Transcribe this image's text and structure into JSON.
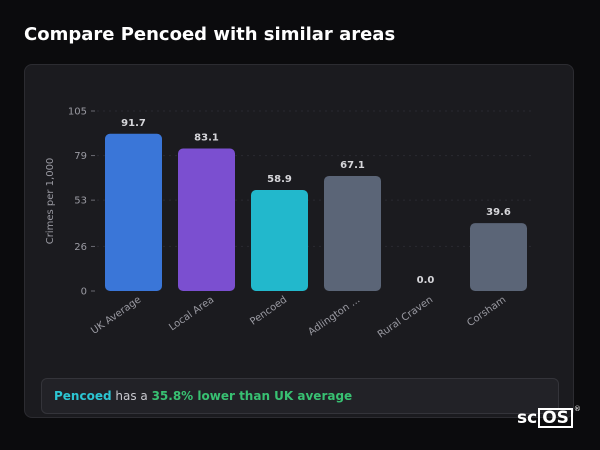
{
  "page": {
    "title": "Compare Pencoed with similar areas"
  },
  "chart_data": {
    "type": "bar",
    "title": "",
    "xlabel": "",
    "ylabel": "Crimes per 1,000",
    "ylim": [
      0,
      105
    ],
    "yticks": [
      0,
      26,
      53,
      79,
      105
    ],
    "categories": [
      "UK Average",
      "Local Area",
      "Pencoed",
      "Adlington ...",
      "Rural Craven",
      "Corsham"
    ],
    "values": [
      91.7,
      83.1,
      58.9,
      67.1,
      0.0,
      39.6
    ],
    "value_labels": [
      "91.7",
      "83.1",
      "58.9",
      "67.1",
      "0.0",
      "39.6"
    ],
    "colors": [
      "#3a76d8",
      "#7b4fd0",
      "#22b8cc",
      "#5b6577",
      "#5b6577",
      "#5b6577"
    ],
    "grid": true,
    "legend": "none"
  },
  "summary": {
    "area": "Pencoed",
    "text_mid": " has a ",
    "difference": "35.8% lower than UK average"
  },
  "brand": {
    "logo_main": "sc",
    "logo_box": "OS",
    "logo_mark": "®"
  }
}
